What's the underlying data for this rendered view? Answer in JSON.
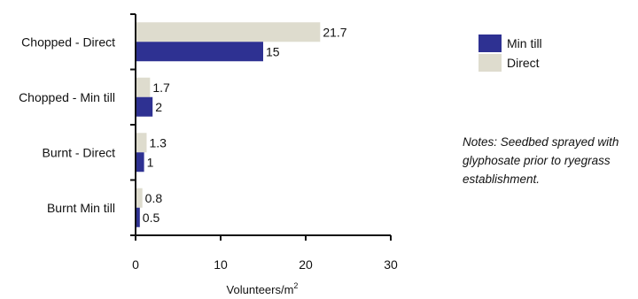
{
  "chart_data": {
    "type": "bar",
    "orientation": "horizontal",
    "categories": [
      "Chopped - Direct",
      "Chopped - Min till",
      "Burnt - Direct",
      "Burnt Min till"
    ],
    "series": [
      {
        "name": "Direct",
        "values": [
          21.7,
          1.7,
          1.3,
          0.8
        ],
        "labels": [
          "21.7",
          "1.7",
          "1.3",
          "0.8"
        ],
        "color": "#dedcce"
      },
      {
        "name": "Min till",
        "values": [
          15,
          2,
          1,
          0.5
        ],
        "labels": [
          "15",
          "2",
          "1",
          "0.5"
        ],
        "color": "#2e3192"
      }
    ],
    "xlabel": "Volunteers/m",
    "xlabel_superscript": "2",
    "xlim": [
      0,
      30
    ],
    "xticks": [
      "0",
      "10",
      "20",
      "30"
    ],
    "grid": false,
    "legend_position": "right",
    "legend": [
      {
        "name": "Min till",
        "color": "#2e3192"
      },
      {
        "name": "Direct",
        "color": "#dedcce"
      }
    ],
    "notes": "Notes: Seedbed sprayed with glyphosate prior to ryegrass establishment."
  }
}
